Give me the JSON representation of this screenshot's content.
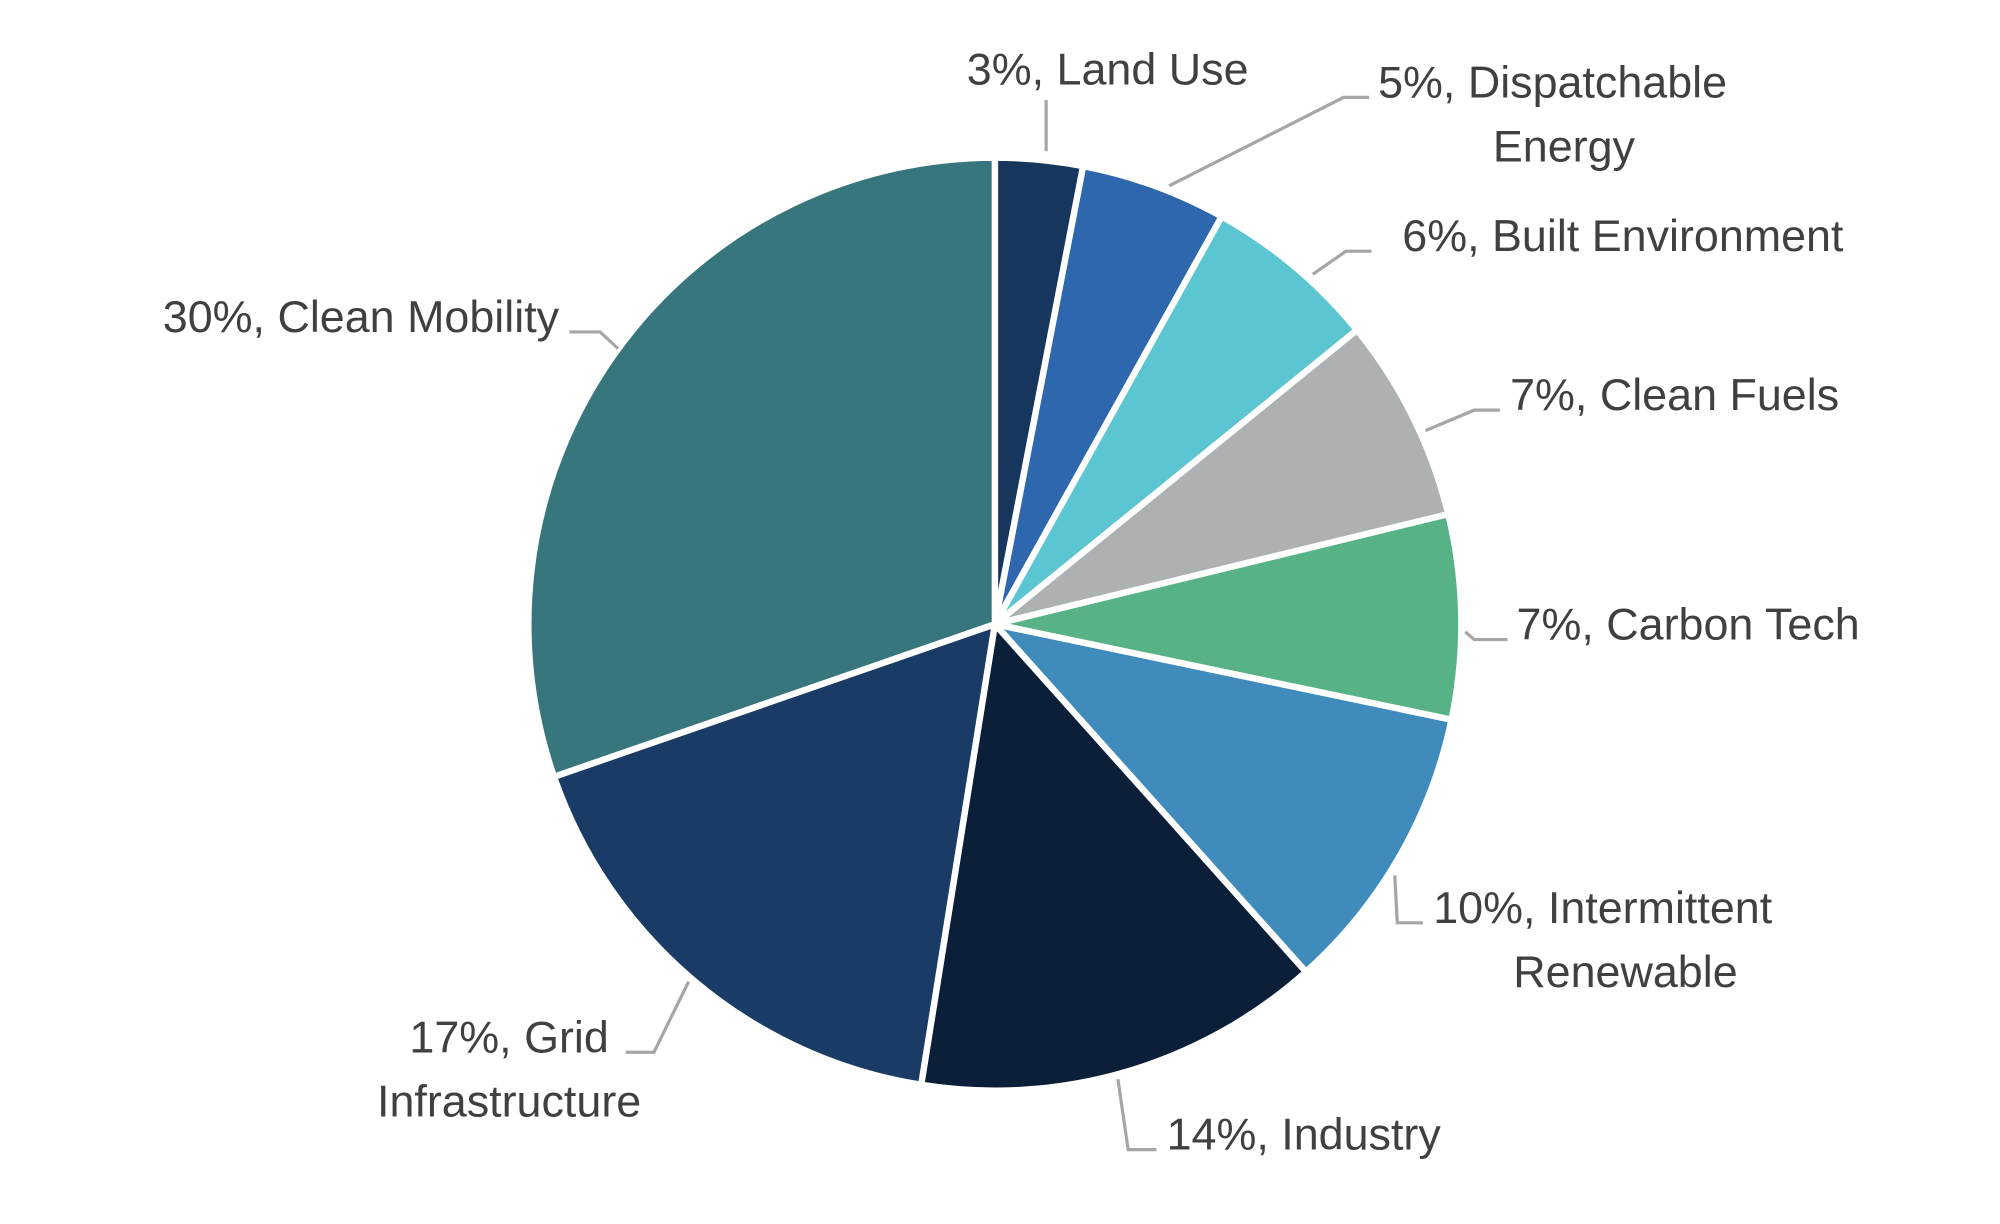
{
  "chart_data": {
    "type": "pie",
    "start": "top",
    "direction": "clockwise",
    "slices": [
      {
        "name": "Land Use",
        "value": 3,
        "label_lines": [
          "3%, Land Use"
        ],
        "color": "#17365d"
      },
      {
        "name": "Dispatchable Energy",
        "value": 5,
        "label_lines": [
          "5%, Dispatchable",
          "Energy"
        ],
        "color": "#2e67ad"
      },
      {
        "name": "Built Environment",
        "value": 6,
        "label_lines": [
          "6%, Built Environment"
        ],
        "color": "#5bc5d1"
      },
      {
        "name": "Clean Fuels",
        "value": 7,
        "label_lines": [
          "7%, Clean Fuels"
        ],
        "color": "#aeb1b2"
      },
      {
        "name": "Carbon Tech",
        "value": 7,
        "label_lines": [
          "7%, Carbon Tech"
        ],
        "color": "#57b386"
      },
      {
        "name": "Intermittent Renewable",
        "value": 10,
        "label_lines": [
          "10%, Intermittent",
          "Renewable"
        ],
        "color": "#3f8cbc"
      },
      {
        "name": "Industry",
        "value": 14,
        "label_lines": [
          "14%, Industry"
        ],
        "color": "#0c1f38"
      },
      {
        "name": "Grid Infrastructure",
        "value": 17,
        "label_lines": [
          "17%, Grid",
          "Infrastructure"
        ],
        "color": "#1a3b65"
      },
      {
        "name": "Clean Mobility",
        "value": 30,
        "label_lines": [
          "30%, Clean Mobility"
        ],
        "color": "#37767c"
      }
    ]
  }
}
